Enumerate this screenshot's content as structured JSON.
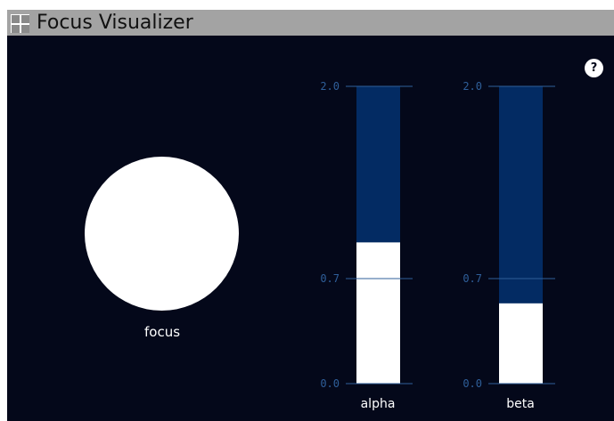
{
  "window": {
    "title": "Focus Visualizer",
    "icon": "grid-window-icon"
  },
  "help": {
    "label": "?",
    "icon": "help-icon"
  },
  "focus": {
    "label": "focus",
    "indicator_color": "#ffffff"
  },
  "meters": {
    "scale_min": 0.0,
    "scale_max": 2.0,
    "ticks": [
      "2.0",
      "0.7",
      "0.0"
    ],
    "tick_values": [
      2.0,
      0.7,
      0.0
    ],
    "background_color": "#04081a",
    "track_color": "#032b63",
    "fill_color": "#ffffff",
    "tick_color": "#2f5f9a",
    "items": [
      {
        "label": "alpha",
        "value": 0.95
      },
      {
        "label": "beta",
        "value": 0.54
      }
    ]
  }
}
